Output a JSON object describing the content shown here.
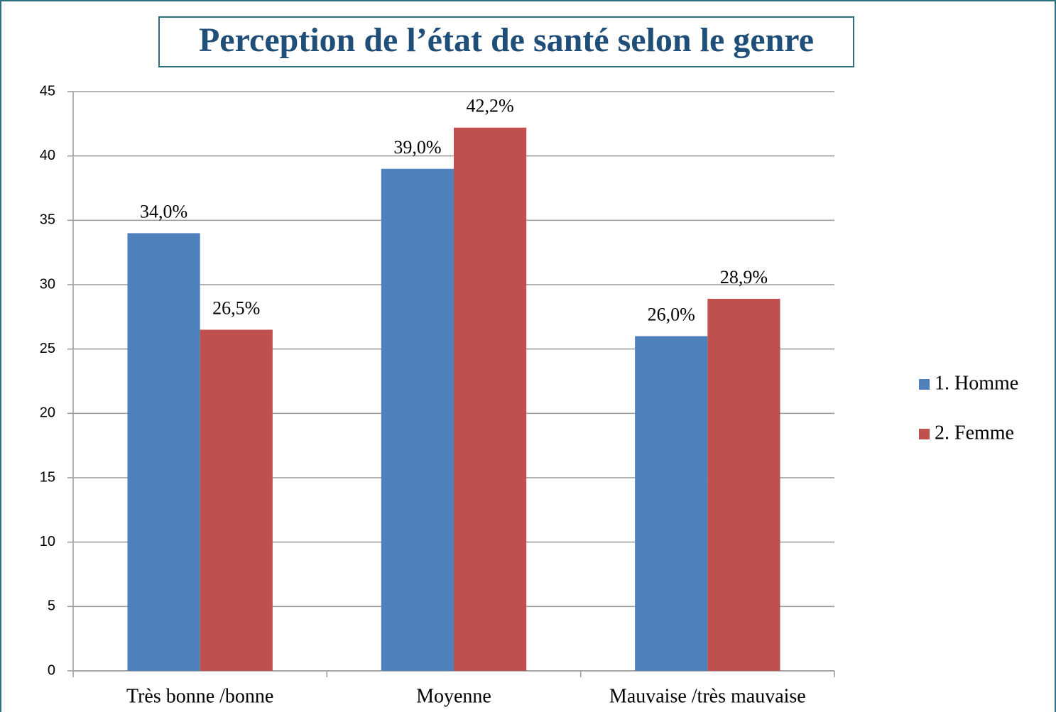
{
  "chart_data": {
    "type": "bar",
    "title": "Perception de l’état de santé selon le genre",
    "categories": [
      "Très bonne /bonne",
      "Moyenne",
      "Mauvaise /très mauvaise"
    ],
    "series": [
      {
        "name": "1. Homme",
        "color": "#4f81bd",
        "values": [
          34.0,
          39.0,
          26.0
        ],
        "value_labels": [
          "34,0%",
          "39,0%",
          "26,0%"
        ]
      },
      {
        "name": "2. Femme",
        "color": "#c0504d",
        "values": [
          26.5,
          42.2,
          28.9
        ],
        "value_labels": [
          "26,5%",
          "42,2%",
          "28,9%"
        ]
      }
    ],
    "ylim": [
      0,
      45
    ],
    "yticks": [
      0,
      5,
      10,
      15,
      20,
      25,
      30,
      35,
      40,
      45
    ],
    "grid": true,
    "legend": "right"
  }
}
